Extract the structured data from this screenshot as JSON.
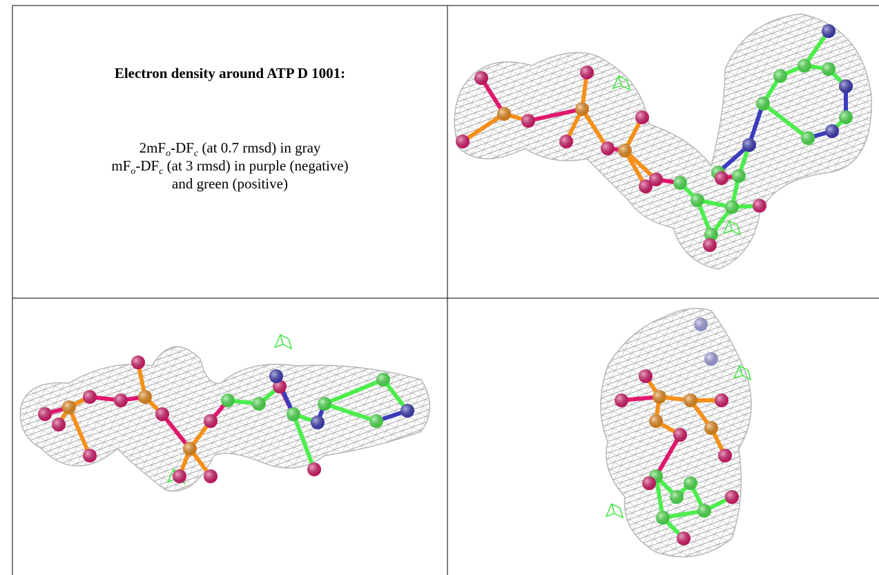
{
  "title": "Electron density around ATP D 1001:",
  "caption": {
    "line1": [
      "2mF",
      "o",
      "-DF",
      "c",
      " (at 0.7 rmsd) in gray"
    ],
    "line2": [
      "mF",
      "o",
      "-DF",
      "c",
      " (at 3 rmsd) in purple (negative)"
    ],
    "line3": "and green (positive)"
  }
}
